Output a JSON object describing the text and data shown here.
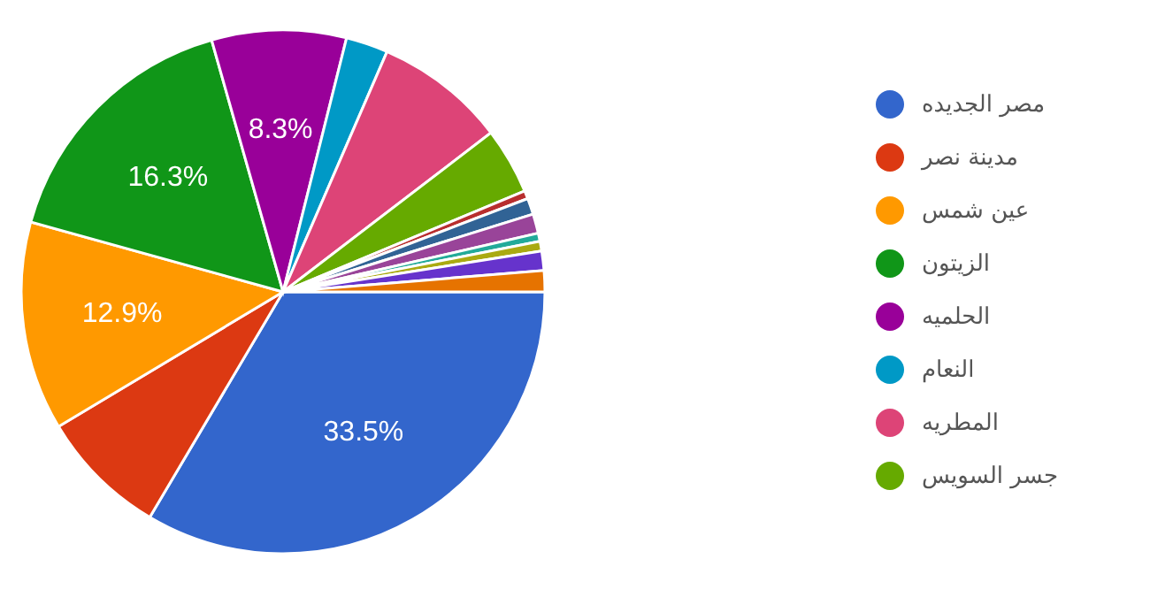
{
  "chart_data": {
    "type": "pie",
    "categories": [
      "مصر الجديده",
      "مدينة نصر",
      "عين شمس",
      "الزيتون",
      "الحلميه",
      "النعام",
      "المطريه",
      "جسر السويس",
      null,
      null,
      null,
      null,
      null,
      null,
      null
    ],
    "values": [
      33.5,
      7.9,
      12.9,
      16.3,
      8.3,
      2.6,
      8.1,
      4.1,
      0.5,
      1.0,
      1.2,
      0.5,
      0.6,
      1.2,
      1.3
    ],
    "colors": [
      "#3366cc",
      "#dc3912",
      "#ff9900",
      "#109618",
      "#990099",
      "#0099c6",
      "#dd4477",
      "#66aa00",
      "#b82e2e",
      "#316395",
      "#994499",
      "#22aa99",
      "#aaaa11",
      "#6633cc",
      "#e67300"
    ],
    "value_labels": [
      "33.5%",
      null,
      "12.9%",
      "16.3%",
      "8.3%",
      null,
      null,
      null,
      null,
      null,
      null,
      null,
      null,
      null,
      null
    ],
    "legend": "top right"
  }
}
